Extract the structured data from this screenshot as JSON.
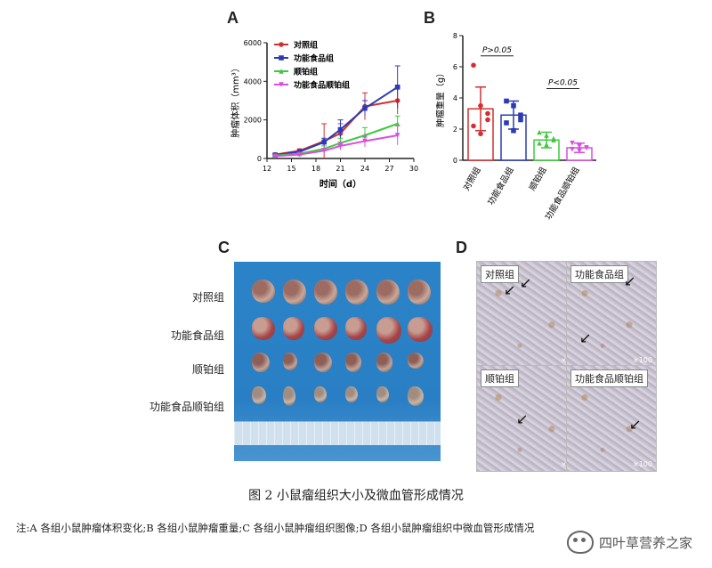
{
  "panels": {
    "a": "A",
    "b": "B",
    "c": "C",
    "d": "D"
  },
  "groups": [
    "对照组",
    "功能食品组",
    "顺铂组",
    "功能食品顺铂组"
  ],
  "colors": {
    "control": "#d32f2f",
    "food": "#2c3bb5",
    "cisplatin": "#3ec93e",
    "combo": "#d94ee0"
  },
  "chart_data": [
    {
      "type": "line",
      "title": "",
      "xlabel": "时间（d）",
      "ylabel": "肿瘤体积（mm³）",
      "xlim": [
        12,
        30
      ],
      "ylim": [
        0,
        6000
      ],
      "xticks": [
        12,
        15,
        18,
        21,
        24,
        27,
        30
      ],
      "yticks": [
        0,
        2000,
        4000,
        6000
      ],
      "x": [
        13,
        16,
        19,
        21,
        24,
        28
      ],
      "legend_position": "top-left",
      "series": [
        {
          "name": "对照组",
          "values": [
            200,
            400,
            900,
            1300,
            2700,
            3000
          ],
          "err": [
            50,
            100,
            900,
            500,
            700,
            700
          ]
        },
        {
          "name": "功能食品组",
          "values": [
            180,
            350,
            850,
            1500,
            2600,
            3700
          ],
          "err": [
            40,
            80,
            200,
            500,
            400,
            1100
          ]
        },
        {
          "name": "顺铂组",
          "values": [
            150,
            250,
            500,
            800,
            1200,
            1800
          ],
          "err": [
            40,
            60,
            150,
            250,
            400,
            400
          ]
        },
        {
          "name": "功能食品顺铂组",
          "values": [
            120,
            200,
            400,
            650,
            900,
            1200
          ],
          "err": [
            30,
            50,
            120,
            200,
            300,
            500
          ]
        }
      ]
    },
    {
      "type": "bar",
      "title": "",
      "ylabel": "肿瘤重量（g）",
      "ylim": [
        0,
        8
      ],
      "yticks": [
        0,
        2,
        4,
        6,
        8
      ],
      "categories": [
        "对照组",
        "功能食品组",
        "顺铂组",
        "功能食品顺铂组"
      ],
      "values": [
        3.3,
        2.9,
        1.3,
        0.8
      ],
      "err": [
        1.4,
        0.9,
        0.5,
        0.3
      ],
      "points": [
        [
          6.1,
          3.5,
          3.0,
          2.2,
          1.7,
          2.6
        ],
        [
          3.8,
          3.5,
          2.6,
          2.4,
          1.9,
          2.9
        ],
        [
          1.8,
          1.6,
          1.3,
          1.1,
          1.0,
          1.4
        ],
        [
          1.1,
          0.9,
          0.8,
          0.7,
          0.6,
          0.8
        ]
      ],
      "annotations": [
        "P>0.05",
        "P<0.05"
      ],
      "grid": false
    }
  ],
  "photo": {
    "labels": [
      "对照组",
      "功能食品组",
      "顺铂组",
      "功能食品顺铂组"
    ]
  },
  "histology": {
    "labels": [
      "对照组",
      "功能食品组",
      "顺铂组",
      "功能食品顺铂组"
    ],
    "magnification": "×100"
  },
  "caption": "图 2  小鼠瘤组织大小及微血管形成情况",
  "note": "注:A 各组小鼠肿瘤体积变化;B 各组小鼠肿瘤重量;C 各组小鼠肿瘤组织图像;D 各组小鼠肿瘤组织中微血管形成情况",
  "watermark": "四叶草营养之家"
}
